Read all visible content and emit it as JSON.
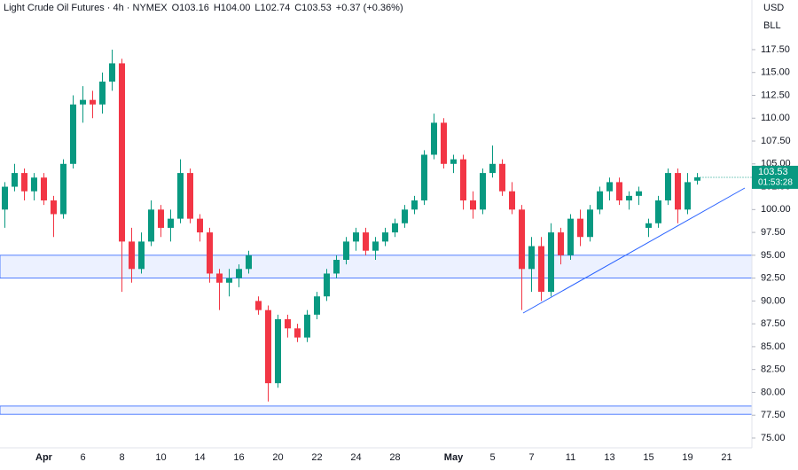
{
  "chart_data": {
    "type": "candlestick",
    "title": "Light Crude Oil Futures · 4h · NYMEX",
    "header_ohlc": [
      "O103.16",
      "H104.00",
      "L102.74",
      "C103.53",
      "+0.37 (+0.36%)"
    ],
    "currency": "USD",
    "unit": "BLL",
    "last_price_label": "103.53",
    "countdown": "01:53:28",
    "up_color": "#089981",
    "down_color": "#f23645",
    "zone_color": "#2962ff",
    "zones": [
      [
        95,
        92.5
      ],
      [
        78.5,
        77.6
      ]
    ],
    "ylim": [
      73.93,
      122.93
    ],
    "yticks": [
      {
        "value": 75,
        "label": "75.00"
      },
      {
        "value": 77.5,
        "label": "77.50"
      },
      {
        "value": 80,
        "label": "80.00"
      },
      {
        "value": 82.5,
        "label": "82.50"
      },
      {
        "value": 85,
        "label": "85.00"
      },
      {
        "value": 87.5,
        "label": "87.50"
      },
      {
        "value": 90,
        "label": "90.00"
      },
      {
        "value": 92.5,
        "label": "92.50"
      },
      {
        "value": 95,
        "label": "95.00"
      },
      {
        "value": 97.5,
        "label": "97.50"
      },
      {
        "value": 100,
        "label": "100.00"
      },
      {
        "value": 102.5,
        "label": "102.50"
      },
      {
        "value": 105,
        "label": "105.00"
      },
      {
        "value": 107.5,
        "label": "107.50"
      },
      {
        "value": 110,
        "label": "110.00"
      },
      {
        "value": 112.5,
        "label": "112.50"
      },
      {
        "value": 115,
        "label": "115.00"
      },
      {
        "value": 117.5,
        "label": "117.50"
      }
    ],
    "categories": [
      null,
      null,
      null,
      null,
      "Apr",
      null,
      null,
      null,
      "6",
      null,
      null,
      null,
      "8",
      null,
      null,
      null,
      "10",
      null,
      null,
      null,
      "14",
      null,
      null,
      null,
      "16",
      null,
      null,
      null,
      "20",
      null,
      null,
      null,
      "22",
      null,
      null,
      null,
      "24",
      null,
      null,
      null,
      "28",
      null,
      null,
      null,
      null,
      null,
      "May",
      null,
      null,
      null,
      "5",
      null,
      null,
      null,
      "7",
      null,
      null,
      null,
      "11",
      null,
      null,
      null,
      "13",
      null,
      null,
      null,
      "15",
      null,
      null,
      null,
      "19",
      null,
      null,
      null,
      "21"
    ],
    "open": [
      100,
      102.5,
      104,
      102,
      103.5,
      101,
      99.5,
      105,
      111.5,
      112,
      111.5,
      114,
      116,
      96.5,
      93.5,
      96.5,
      100,
      98,
      99,
      104,
      99,
      97.5,
      93,
      92,
      92.5,
      93.5,
      90,
      89,
      81,
      88,
      87,
      86,
      88.5,
      90.5,
      93,
      94.5,
      96.5,
      97.5,
      95.5,
      96.5,
      97.5,
      98.5,
      100,
      101,
      106,
      109.5,
      105,
      105.5,
      101,
      100,
      104,
      105,
      102,
      100,
      93.5,
      96,
      91,
      97.5,
      95,
      99,
      97,
      100,
      102,
      103,
      101,
      101.5,
      98,
      98.5,
      101,
      104,
      100,
      103.16,
      null,
      null,
      null
    ],
    "high": [
      103,
      105,
      104.5,
      104,
      104,
      101.5,
      105.5,
      112.5,
      113.5,
      113,
      115,
      117.5,
      116.5,
      98,
      97.5,
      101,
      100.5,
      100,
      105.5,
      104.5,
      99.5,
      98,
      93.5,
      93.5,
      94,
      95.5,
      90.5,
      89.5,
      88.5,
      88.5,
      87.5,
      89,
      91,
      93.5,
      95,
      97,
      98,
      98,
      97,
      98,
      99,
      100.5,
      101.5,
      106.5,
      110.5,
      110,
      106,
      106,
      102,
      104.5,
      107,
      105.5,
      103,
      100.5,
      97,
      97,
      98.5,
      98,
      99.5,
      100,
      100.5,
      102.5,
      103.5,
      103.5,
      102,
      102.5,
      99,
      101.5,
      104.5,
      104.5,
      104,
      104,
      null,
      null,
      null
    ],
    "low": [
      98,
      102,
      101,
      101,
      100.5,
      97,
      99,
      104.5,
      109.5,
      110,
      110.5,
      113,
      91,
      92,
      93,
      96,
      97,
      96.5,
      98.5,
      98.5,
      96.5,
      92,
      89,
      90.5,
      91.5,
      93,
      88.5,
      79,
      80.5,
      86,
      85.5,
      85.5,
      88,
      90,
      92.5,
      94,
      95.5,
      95,
      94.5,
      96,
      97,
      98,
      99.5,
      100.5,
      105.5,
      104.5,
      104,
      100,
      99,
      99.5,
      103.5,
      101.5,
      99.5,
      89,
      91,
      90,
      90.5,
      94,
      94.5,
      96,
      96.5,
      99.5,
      101,
      100.5,
      100,
      100.5,
      97,
      98,
      100.5,
      98.5,
      99.5,
      102.74,
      null,
      null,
      null
    ],
    "close": [
      102.5,
      104,
      102,
      103.5,
      101,
      99.5,
      105,
      111.5,
      112,
      111.5,
      114,
      116,
      96.5,
      93.5,
      96.5,
      100,
      98,
      99,
      104,
      99,
      97.5,
      93,
      92,
      92.5,
      93.5,
      95,
      89,
      81,
      88,
      87,
      86,
      88.5,
      90.5,
      93,
      94.5,
      96.5,
      97.5,
      95.5,
      96.5,
      97.5,
      98.5,
      100,
      101,
      106,
      109.5,
      105,
      105.5,
      101,
      100,
      104,
      105,
      102,
      100,
      93.5,
      96,
      91,
      97.5,
      95,
      99,
      97,
      100,
      102,
      103,
      101,
      101.5,
      102,
      98.5,
      101,
      104,
      100,
      103,
      103.53,
      null,
      null,
      null
    ]
  }
}
